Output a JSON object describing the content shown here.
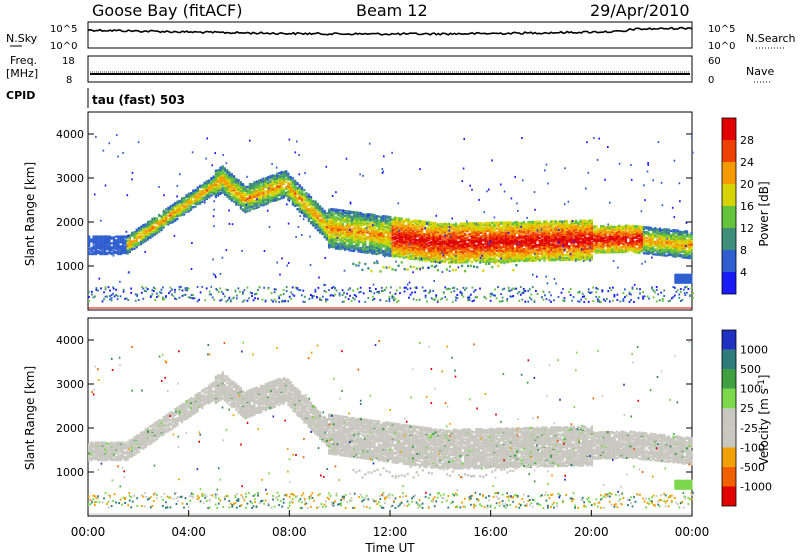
{
  "header": {
    "station": "Goose Bay (fitACF)",
    "beam": "Beam 12",
    "date": "29/Apr/2010"
  },
  "chart_data": [
    {
      "type": "line",
      "name": "top-noise-panel",
      "left_label": "N.Sky",
      "right_label": "N.Search",
      "left_ticks": [
        "10^5",
        "10^0"
      ],
      "right_ticks": [
        "10^5",
        "10^0"
      ],
      "x_range_hours": [
        0,
        24
      ],
      "series_description_level": "log noise near 10^5"
    },
    {
      "type": "line",
      "name": "freq-panel",
      "left_label_top": "Freq.",
      "left_label_bottom": "[MHz]",
      "right_label": "Nave",
      "left_ticks": [
        "18",
        "8"
      ],
      "right_ticks": [
        "60",
        "0"
      ],
      "cpid_label": "CPID",
      "cpid_text": "tau (fast) 503"
    },
    {
      "type": "heatmap",
      "name": "power-panel",
      "ylabel": "Slant Range [km]",
      "ylim": [
        0,
        4500
      ],
      "yticks": [
        "1000",
        "2000",
        "3000",
        "4000"
      ],
      "x_range_hours": [
        0,
        24
      ],
      "colorbar": {
        "label": "Power [dB]",
        "ticks": [
          "4",
          "8",
          "12",
          "16",
          "20",
          "24",
          "28"
        ],
        "colors": [
          "#1a1aff",
          "#2f5ecf",
          "#3e8f7a",
          "#64c23c",
          "#d6d400",
          "#f59a00",
          "#f04000",
          "#e00000"
        ]
      }
    },
    {
      "type": "heatmap",
      "name": "velocity-panel",
      "ylabel": "Slant Range [km]",
      "ylim": [
        0,
        4500
      ],
      "yticks": [
        "1000",
        "2000",
        "3000",
        "4000"
      ],
      "x_range_hours": [
        0,
        24
      ],
      "xticks": [
        "00:00",
        "04:00",
        "08:00",
        "12:00",
        "16:00",
        "20:00",
        "00:00"
      ],
      "xlabel": "Time UT",
      "colorbar": {
        "label_main": "Velocity [m s",
        "label_sup": "-1",
        "label_end": "]",
        "ticks": [
          "1000",
          "500",
          "100",
          "25",
          "-25",
          "-100",
          "-500",
          "-1000"
        ],
        "colors": [
          "#2030c0",
          "#2f7a7a",
          "#3ea040",
          "#7ad84a",
          "#c8c8c0",
          "#c8c8c0",
          "#f0a000",
          "#f06000",
          "#e00000"
        ]
      }
    }
  ]
}
